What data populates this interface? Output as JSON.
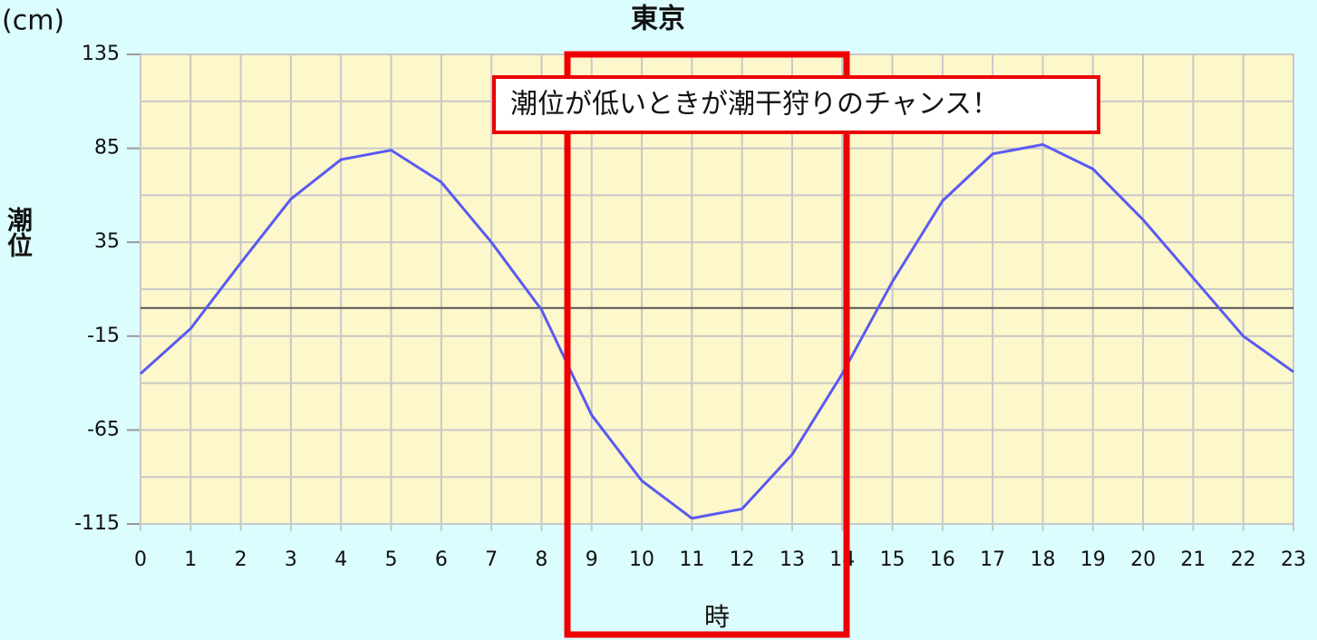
{
  "chart_data": {
    "type": "line",
    "title": "東京",
    "y_unit": "(cm)",
    "y_label": "潮位",
    "x_label": "時",
    "annotation": "潮位が低いときが潮干狩りのチャンス！",
    "x": [
      0,
      1,
      2,
      3,
      4,
      5,
      6,
      7,
      8,
      9,
      10,
      11,
      12,
      13,
      14,
      15,
      16,
      17,
      18,
      19,
      20,
      21,
      22,
      23
    ],
    "series": [
      {
        "color": "#5a5af0",
        "values": [
          -35,
          -11,
          24,
          58,
          79,
          84,
          67,
          35,
          -1,
          -57,
          -92,
          -112,
          -107,
          -78,
          -35,
          14,
          57,
          82,
          87,
          74,
          47,
          16,
          -15,
          -34
        ]
      }
    ],
    "xlim": [
      0,
      23
    ],
    "xticks": [
      0,
      1,
      2,
      3,
      4,
      5,
      6,
      7,
      8,
      9,
      10,
      11,
      12,
      13,
      14,
      15,
      16,
      17,
      18,
      19,
      20,
      21,
      22,
      23
    ],
    "ylim": [
      -115,
      135
    ],
    "yticks": [
      135,
      85,
      35,
      -15,
      -65,
      -115
    ],
    "minor_yticks": [
      110,
      60,
      10,
      -40,
      -90
    ],
    "grid": true,
    "zero_line": true
  }
}
